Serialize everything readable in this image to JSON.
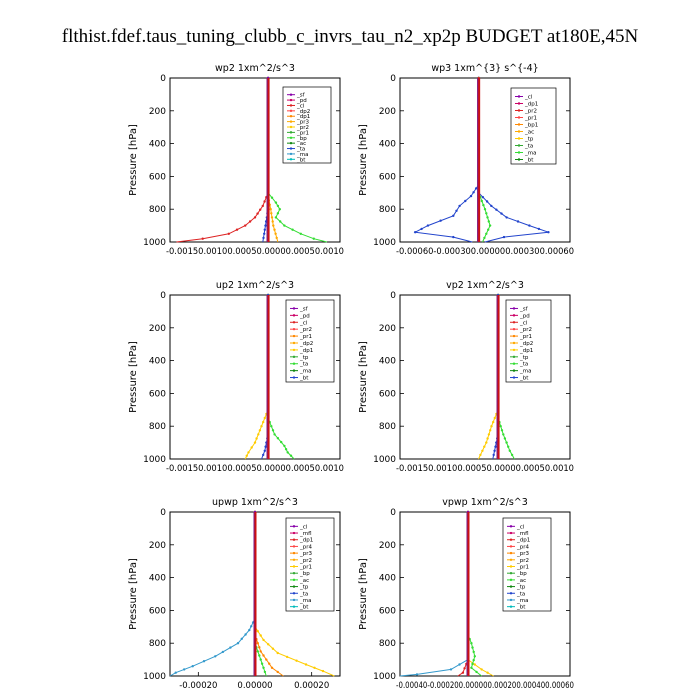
{
  "figure_title": "flthist.fdef.taus_tuning_clubb_c_invrs_tau_n2_xp2p  BUDGET at180E,45N",
  "chart_data": [
    {
      "type": "line",
      "id": "wp2",
      "title": "wp2   1xm^2/s^3",
      "ylabel": "Pressure [hPa]",
      "y_ticks": [
        0,
        200,
        400,
        600,
        800,
        1000
      ],
      "ylim": [
        1000,
        0
      ],
      "xlim": [
        -0.0015,
        0.0011
      ],
      "x_tick_string": "-0.00150.00100.00050.00000.00050.0010",
      "legend": [
        "_sf",
        "_pd",
        "_cl",
        "_dp2",
        "_dp1",
        "_pr3",
        "_pr2",
        "_pr1",
        "_bp",
        "_ac",
        "_ta",
        "_ma",
        "_bt"
      ],
      "series": [
        {
          "name": "_dp1",
          "color": "#dd2222",
          "profile": [
            [
              0,
              0
            ],
            [
              700,
              0
            ],
            [
              780,
              -8e-05
            ],
            [
              850,
              -0.0002
            ],
            [
              900,
              -0.00035
            ],
            [
              950,
              -0.0006
            ],
            [
              980,
              -0.001
            ],
            [
              1000,
              -0.0014
            ]
          ]
        },
        {
          "name": "_pr1",
          "color": "#33dd33",
          "profile": [
            [
              0,
              0
            ],
            [
              700,
              0
            ],
            [
              760,
              0.00012
            ],
            [
              800,
              0.00018
            ],
            [
              850,
              0.00012
            ],
            [
              900,
              0.00025
            ],
            [
              950,
              0.0005
            ],
            [
              980,
              0.0007
            ],
            [
              1000,
              0.0009
            ]
          ]
        },
        {
          "name": "_pr2",
          "color": "#ffaa00",
          "profile": [
            [
              0,
              0
            ],
            [
              720,
              0
            ],
            [
              800,
              4e-05
            ],
            [
              900,
              8e-05
            ],
            [
              1000,
              0.00015
            ]
          ]
        },
        {
          "name": "_ta",
          "color": "#2244cc",
          "profile": [
            [
              0,
              0
            ],
            [
              800,
              0
            ],
            [
              900,
              -4e-05
            ],
            [
              1000,
              -8e-05
            ]
          ]
        },
        {
          "name": "_bt",
          "color": "#8800aa",
          "profile": [
            [
              0,
              0
            ],
            [
              1000,
              0
            ]
          ]
        }
      ]
    },
    {
      "type": "line",
      "id": "wp3",
      "title": "wp3   1xm^{3} s^{-4}",
      "ylabel": "Pressure [hPa]",
      "y_ticks": [
        0,
        200,
        400,
        600,
        800,
        1000
      ],
      "ylim": [
        1000,
        0
      ],
      "xlim": [
        -0.00062,
        0.00072
      ],
      "x_tick_string": "-0.00060-0.000300.000000.000300.00060",
      "legend": [
        "_cl",
        "_dp1",
        "_pr2",
        "_pr1",
        "_bp1",
        "_ac",
        "_tp",
        "_ta",
        "_ma",
        "_bt"
      ],
      "series": [
        {
          "name": "_ta",
          "color": "#2244cc",
          "profile": [
            [
              0,
              0
            ],
            [
              650,
              0
            ],
            [
              720,
              -6e-05
            ],
            [
              780,
              -0.00015
            ],
            [
              840,
              -0.0002
            ],
            [
              900,
              -0.0004
            ],
            [
              940,
              -0.0005
            ],
            [
              970,
              -0.0002
            ],
            [
              1000,
              -5e-05
            ]
          ]
        },
        {
          "name": "_tp",
          "color": "#2244cc",
          "profile": [
            [
              0,
              0
            ],
            [
              700,
              0
            ],
            [
              780,
              0.0001
            ],
            [
              850,
              0.00022
            ],
            [
              900,
              0.0004
            ],
            [
              940,
              0.00055
            ],
            [
              970,
              0.0002
            ],
            [
              1000,
              5e-05
            ]
          ]
        },
        {
          "name": "_pr1",
          "color": "#33dd33",
          "profile": [
            [
              0,
              0
            ],
            [
              700,
              0
            ],
            [
              800,
              5e-05
            ],
            [
              900,
              9e-05
            ],
            [
              1000,
              3e-05
            ]
          ]
        },
        {
          "name": "_dp1",
          "color": "#dd2222",
          "profile": [
            [
              0,
              0
            ],
            [
              1000,
              0
            ]
          ]
        }
      ]
    },
    {
      "type": "line",
      "id": "up2",
      "title": "up2   1xm^2/s^3",
      "ylabel": "Pressure [hPa]",
      "y_ticks": [
        0,
        200,
        400,
        600,
        800,
        1000
      ],
      "ylim": [
        1000,
        0
      ],
      "xlim": [
        -0.0015,
        0.0011
      ],
      "x_tick_string": "-0.00150.00100.00050.00000.00050.0010",
      "legend": [
        "_sf",
        "_pd",
        "_cl",
        "_pr2",
        "_pr1",
        "_dp2",
        "_dp1",
        "_tp",
        "_ta",
        "_ma",
        "_bt"
      ],
      "series": [
        {
          "name": "_dp1",
          "color": "#dd2222",
          "profile": [
            [
              0,
              0
            ],
            [
              1000,
              0
            ]
          ]
        },
        {
          "name": "_pr2",
          "color": "#ffcc00",
          "profile": [
            [
              0,
              0
            ],
            [
              700,
              0
            ],
            [
              800,
              -0.0001
            ],
            [
              900,
              -0.0002
            ],
            [
              960,
              -0.0003
            ],
            [
              1000,
              -0.00035
            ]
          ]
        },
        {
          "name": "_pr1",
          "color": "#33dd33",
          "profile": [
            [
              0,
              0
            ],
            [
              750,
              0
            ],
            [
              850,
              0.0001
            ],
            [
              920,
              0.00025
            ],
            [
              960,
              0.0003
            ],
            [
              1000,
              0.0004
            ]
          ]
        },
        {
          "name": "_ta",
          "color": "#2244cc",
          "profile": [
            [
              0,
              0
            ],
            [
              850,
              0
            ],
            [
              950,
              -5e-05
            ],
            [
              1000,
              -0.0001
            ]
          ]
        }
      ]
    },
    {
      "type": "line",
      "id": "vp2",
      "title": "vp2   1xm^2/s^3",
      "ylabel": "Pressure [hPa]",
      "y_ticks": [
        0,
        200,
        400,
        600,
        800,
        1000
      ],
      "ylim": [
        1000,
        0
      ],
      "xlim": [
        -0.0015,
        0.0011
      ],
      "x_tick_string": "-0.00150.00100.00050.00000.00050.0010",
      "legend": [
        "_sf",
        "_pd",
        "_cl",
        "_pr2",
        "_pr1",
        "_dp2",
        "_dp1",
        "_tp",
        "_ta",
        "_ma",
        "_bt"
      ],
      "series": [
        {
          "name": "_dp1",
          "color": "#dd2222",
          "profile": [
            [
              0,
              0
            ],
            [
              1000,
              0
            ]
          ]
        },
        {
          "name": "_pr2",
          "color": "#ffcc00",
          "profile": [
            [
              0,
              0
            ],
            [
              700,
              0
            ],
            [
              800,
              -0.0001
            ],
            [
              900,
              -0.00018
            ],
            [
              1000,
              -0.0003
            ]
          ]
        },
        {
          "name": "_pr1",
          "color": "#33dd33",
          "profile": [
            [
              0,
              0
            ],
            [
              750,
              0
            ],
            [
              850,
              8e-05
            ],
            [
              950,
              0.00018
            ],
            [
              1000,
              0.00025
            ]
          ]
        },
        {
          "name": "_ta",
          "color": "#2244cc",
          "profile": [
            [
              0,
              0
            ],
            [
              850,
              0
            ],
            [
              1000,
              -8e-05
            ]
          ]
        }
      ]
    },
    {
      "type": "line",
      "id": "upwp",
      "title": "upwp   1xm^2/s^3",
      "ylabel": "Pressure [hPa]",
      "y_ticks": [
        0,
        200,
        400,
        600,
        800,
        1000
      ],
      "ylim": [
        1000,
        0
      ],
      "xlim": [
        -0.0003,
        0.0003
      ],
      "x_ticks": [
        -0.0002,
        0,
        0.0002
      ],
      "x_tick_labels": [
        "-0.00020",
        "0.00000",
        "0.00020"
      ],
      "legend": [
        "_cl",
        "_mfl",
        "_dp1",
        "_pr4",
        "_pr3",
        "_pr2",
        "_pr1",
        "_bp",
        "_ac",
        "_tp",
        "_ta",
        "_ma",
        "_bt"
      ],
      "series": [
        {
          "name": "_tp",
          "color": "#3399cc",
          "profile": [
            [
              0,
              0
            ],
            [
              650,
              0
            ],
            [
              720,
              -2e-05
            ],
            [
              800,
              -6e-05
            ],
            [
              880,
              -0.00014
            ],
            [
              940,
              -0.00022
            ],
            [
              980,
              -0.00028
            ],
            [
              1000,
              -0.0003
            ]
          ]
        },
        {
          "name": "_pr1",
          "color": "#ffcc00",
          "profile": [
            [
              0,
              0
            ],
            [
              700,
              0
            ],
            [
              780,
              3e-05
            ],
            [
              860,
              8e-05
            ],
            [
              930,
              0.00018
            ],
            [
              970,
              0.00024
            ],
            [
              1000,
              0.00028
            ]
          ]
        },
        {
          "name": "_pr2",
          "color": "#ff8800",
          "profile": [
            [
              0,
              0
            ],
            [
              750,
              0
            ],
            [
              850,
              2e-05
            ],
            [
              950,
              6e-05
            ],
            [
              1000,
              0.0001
            ]
          ]
        },
        {
          "name": "_dp1",
          "color": "#dd2222",
          "profile": [
            [
              0,
              0
            ],
            [
              1000,
              0
            ]
          ]
        },
        {
          "name": "_ac",
          "color": "#33dd33",
          "profile": [
            [
              0,
              0
            ],
            [
              800,
              0
            ],
            [
              900,
              2e-05
            ],
            [
              1000,
              4e-05
            ]
          ]
        },
        {
          "name": "_bt",
          "color": "#8800aa",
          "profile": [
            [
              0,
              0
            ],
            [
              1000,
              0
            ]
          ]
        }
      ]
    },
    {
      "type": "line",
      "id": "vpwp",
      "title": "vpwp   1xm^2/s^3",
      "ylabel": "Pressure [hPa]",
      "y_ticks": [
        0,
        200,
        400,
        600,
        800,
        1000
      ],
      "ylim": [
        1000,
        0
      ],
      "xlim": [
        -0.0004,
        0.0006
      ],
      "x_tick_string": "-0.00040-0.000200.000000.000200.000400.00060",
      "legend": [
        "_cl",
        "_mfl",
        "_dp1",
        "_pr4",
        "_pr3",
        "_pr2",
        "_pr1",
        "_bp",
        "_ac",
        "_tp",
        "_ta",
        "_ma",
        "_bt"
      ],
      "series": [
        {
          "name": "_tp",
          "color": "#3399cc",
          "profile": [
            [
              0,
              0
            ],
            [
              900,
              0
            ],
            [
              960,
              -0.0001
            ],
            [
              990,
              -0.0003
            ],
            [
              1000,
              -0.0004
            ]
          ]
        },
        {
          "name": "_pr1",
          "color": "#ffcc00",
          "profile": [
            [
              0,
              0
            ],
            [
              900,
              0
            ],
            [
              960,
              8e-05
            ],
            [
              1000,
              0.00015
            ]
          ]
        },
        {
          "name": "_ac",
          "color": "#33dd33",
          "profile": [
            [
              0,
              0
            ],
            [
              750,
              0
            ],
            [
              800,
              2e-05
            ],
            [
              880,
              4e-05
            ],
            [
              950,
              2e-05
            ],
            [
              1000,
              8e-05
            ]
          ]
        },
        {
          "name": "_dp1",
          "color": "#dd2222",
          "profile": [
            [
              0,
              0
            ],
            [
              900,
              0
            ],
            [
              980,
              -3e-05
            ],
            [
              1000,
              -6e-05
            ]
          ]
        },
        {
          "name": "_bt",
          "color": "#8800aa",
          "profile": [
            [
              0,
              0
            ],
            [
              1000,
              0
            ]
          ]
        }
      ]
    }
  ]
}
